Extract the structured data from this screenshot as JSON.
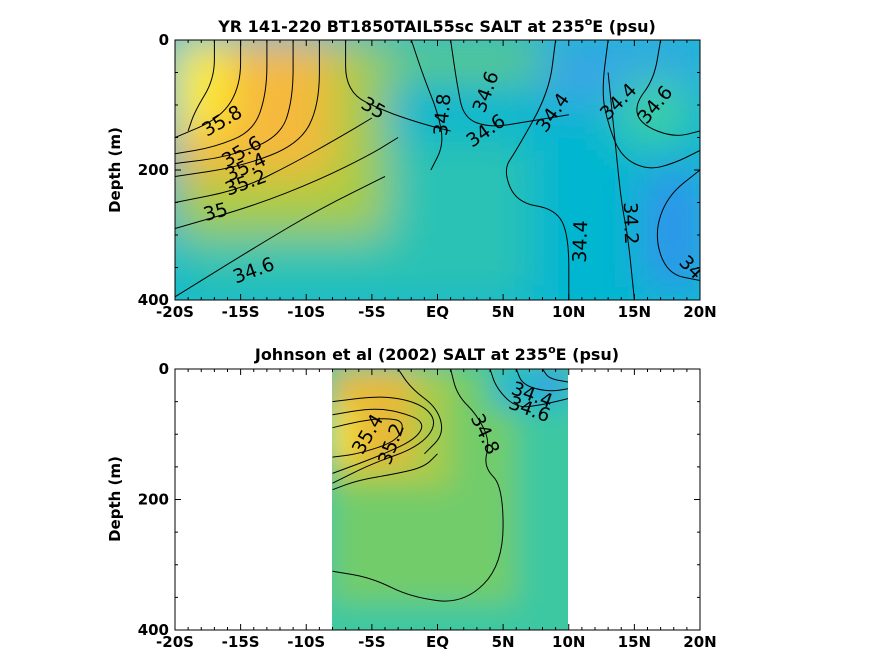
{
  "chart_data": [
    {
      "type": "contour",
      "title_text": "YR 141-220 BT1850TAIL55sc SALT at 235",
      "title_sup": "o",
      "title_tail": "E (psu)",
      "ylabel": "Depth (m)",
      "xlim": [
        -20,
        20
      ],
      "ylim": [
        0,
        400
      ],
      "y_reversed": true,
      "x_ticks": [
        -20,
        -15,
        -10,
        -5,
        0,
        5,
        10,
        15,
        20
      ],
      "x_tick_labels": [
        "-20S",
        "-15S",
        "-10S",
        "-5S",
        "EQ",
        "5N",
        "10N",
        "15N",
        "20N"
      ],
      "y_ticks": [
        0,
        200,
        400
      ],
      "y_tick_labels": [
        "0",
        "200",
        "400"
      ],
      "data_extent": {
        "lon": [
          -20,
          20
        ],
        "depth": [
          0,
          400
        ]
      },
      "color_fields": [
        {
          "color": "#00b6d0",
          "lon": [
            -20,
            20
          ],
          "depth": [
            0,
            400
          ]
        },
        {
          "color": "#2ac2b4",
          "lon": [
            -20,
            7
          ],
          "depth": [
            150,
            400
          ]
        },
        {
          "color": "#5ecb7a",
          "lon": [
            -20,
            10
          ],
          "depth": [
            0,
            60
          ]
        },
        {
          "color": "#38a6e6",
          "lon": [
            8,
            20
          ],
          "depth": [
            0,
            100
          ]
        },
        {
          "color": "#3090ee",
          "lon": [
            16,
            20
          ],
          "depth": [
            200,
            380
          ]
        },
        {
          "color": "#a8cc40",
          "lon": [
            -20,
            -4
          ],
          "depth": [
            0,
            300
          ]
        },
        {
          "color": "#f5b93c",
          "lon": [
            -20,
            -8
          ],
          "depth": [
            0,
            210
          ]
        },
        {
          "color": "#ffef2a",
          "lon": [
            -20,
            -16
          ],
          "depth": [
            0,
            140
          ]
        },
        {
          "color": "#3ed0a0",
          "lon": [
            14,
            19
          ],
          "depth": [
            60,
            160
          ]
        }
      ],
      "contours": [
        {
          "level": "35.8",
          "points": [
            [
              -17,
              0
            ],
            [
              -17,
              60
            ],
            [
              -18.5,
              110
            ],
            [
              -19,
              140
            ]
          ]
        },
        {
          "level": "",
          "points": [
            [
              -15,
              0
            ],
            [
              -15,
              70
            ],
            [
              -16.5,
              120
            ],
            [
              -20,
              150
            ]
          ]
        },
        {
          "level": "35.6",
          "points": [
            [
              -13,
              0
            ],
            [
              -13,
              80
            ],
            [
              -14,
              140
            ],
            [
              -17,
              165
            ],
            [
              -20,
              175
            ]
          ]
        },
        {
          "level": "35.4",
          "points": [
            [
              -11,
              0
            ],
            [
              -11,
              90
            ],
            [
              -12,
              150
            ],
            [
              -16,
              180
            ],
            [
              -20,
              190
            ]
          ]
        },
        {
          "level": "35.2",
          "points": [
            [
              -9,
              0
            ],
            [
              -9,
              100
            ],
            [
              -10.5,
              160
            ],
            [
              -15,
              195
            ],
            [
              -20,
              210
            ]
          ]
        },
        {
          "level": "35",
          "points": [
            [
              -5,
              120
            ],
            [
              -7.5,
              150
            ],
            [
              -11,
              190
            ],
            [
              -15,
              230
            ],
            [
              -20,
              250
            ]
          ]
        },
        {
          "level": "",
          "points": [
            [
              -3,
              150
            ],
            [
              -5,
              175
            ],
            [
              -9,
              215
            ],
            [
              -14,
              255
            ],
            [
              -20,
              290
            ]
          ]
        },
        {
          "level": "34.6",
          "points": [
            [
              -4,
              210
            ],
            [
              -9,
              260
            ],
            [
              -14,
              320
            ],
            [
              -20,
              395
            ]
          ]
        },
        {
          "level": "35",
          "points": [
            [
              -7,
              0
            ],
            [
              -7,
              80
            ],
            [
              -4,
              110
            ],
            [
              -1,
              130
            ],
            [
              1,
              140
            ]
          ]
        },
        {
          "level": "34.8",
          "points": [
            [
              -2,
              0
            ],
            [
              -1,
              60
            ],
            [
              0,
              110
            ],
            [
              0.5,
              160
            ],
            [
              -0.5,
              200
            ]
          ]
        },
        {
          "level": "34.6",
          "points": [
            [
              1,
              0
            ],
            [
              1.5,
              70
            ],
            [
              2,
              120
            ],
            [
              4,
              135
            ],
            [
              7,
              125
            ],
            [
              10,
              115
            ]
          ]
        },
        {
          "level": "34.4",
          "points": [
            [
              9,
              0
            ],
            [
              8.5,
              80
            ],
            [
              6,
              170
            ],
            [
              5,
              200
            ],
            [
              6,
              250
            ],
            [
              9,
              260
            ],
            [
              10,
              300
            ],
            [
              10,
              400
            ]
          ]
        },
        {
          "level": "34.2",
          "points": [
            [
              13,
              50
            ],
            [
              13.5,
              150
            ],
            [
              14,
              250
            ],
            [
              14.5,
              300
            ],
            [
              15,
              400
            ]
          ]
        },
        {
          "level": "34.4",
          "points": [
            [
              13,
              0
            ],
            [
              12.5,
              80
            ],
            [
              13,
              130
            ],
            [
              14,
              180
            ],
            [
              16,
              200
            ],
            [
              18,
              190
            ],
            [
              20,
              170
            ]
          ]
        },
        {
          "level": "34.6",
          "points": [
            [
              17,
              0
            ],
            [
              16.5,
              60
            ],
            [
              15,
              100
            ],
            [
              15.5,
              130
            ],
            [
              18,
              150
            ],
            [
              20,
              140
            ]
          ]
        },
        {
          "level": "34",
          "points": [
            [
              20,
              200
            ],
            [
              17.5,
              240
            ],
            [
              16.5,
              300
            ],
            [
              17.5,
              360
            ],
            [
              20,
              370
            ]
          ]
        }
      ],
      "labels": [
        {
          "text": "35.8",
          "lon": -16.4,
          "depth": 125,
          "angle": -30
        },
        {
          "text": "35.6",
          "lon": -14.9,
          "depth": 172,
          "angle": -30
        },
        {
          "text": "35.4",
          "lon": -14.6,
          "depth": 196,
          "angle": -25
        },
        {
          "text": "35.2",
          "lon": -14.6,
          "depth": 220,
          "angle": -20
        },
        {
          "text": "35",
          "lon": -16.9,
          "depth": 265,
          "angle": -15
        },
        {
          "text": "34.6",
          "lon": -14,
          "depth": 355,
          "angle": -20
        },
        {
          "text": "35",
          "lon": -4.9,
          "depth": 105,
          "angle": 30
        },
        {
          "text": "34.8",
          "lon": 0.4,
          "depth": 115,
          "angle": -85
        },
        {
          "text": "34.6",
          "lon": 3.7,
          "depth": 80,
          "angle": -70
        },
        {
          "text": "34.6",
          "lon": 3.7,
          "depth": 140,
          "angle": -35
        },
        {
          "text": "34.4",
          "lon": 8.8,
          "depth": 112,
          "angle": -55
        },
        {
          "text": "34.4",
          "lon": 13.8,
          "depth": 95,
          "angle": -45
        },
        {
          "text": "34.6",
          "lon": 16.6,
          "depth": 100,
          "angle": -50
        },
        {
          "text": "34.4",
          "lon": 10.9,
          "depth": 310,
          "angle": -88
        },
        {
          "text": "34.2",
          "lon": 14.7,
          "depth": 282,
          "angle": 88
        },
        {
          "text": "34",
          "lon": 19.3,
          "depth": 350,
          "angle": 45
        }
      ]
    },
    {
      "type": "contour",
      "title_text": "Johnson et al (2002) SALT at 235",
      "title_sup": "o",
      "title_tail": "E (psu)",
      "ylabel": "Depth (m)",
      "xlim": [
        -20,
        20
      ],
      "ylim": [
        0,
        400
      ],
      "y_reversed": true,
      "x_ticks": [
        -20,
        -15,
        -10,
        -5,
        0,
        5,
        10,
        15,
        20
      ],
      "x_tick_labels": [
        "-20S",
        "-15S",
        "-10S",
        "-5S",
        "EQ",
        "5N",
        "10N",
        "15N",
        "20N"
      ],
      "y_ticks": [
        0,
        200,
        400
      ],
      "y_tick_labels": [
        "0",
        "200",
        "400"
      ],
      "data_extent": {
        "lon": [
          -8,
          10
        ],
        "depth": [
          0,
          400
        ]
      },
      "color_fields": [
        {
          "color": "#3cc8a2",
          "lon": [
            -8,
            10
          ],
          "depth": [
            0,
            400
          ]
        },
        {
          "color": "#72cc6a",
          "lon": [
            -8,
            6
          ],
          "depth": [
            0,
            360
          ]
        },
        {
          "color": "#a9cb48",
          "lon": [
            -8,
            1
          ],
          "depth": [
            0,
            180
          ]
        },
        {
          "color": "#e6ba38",
          "lon": [
            -8,
            -2
          ],
          "depth": [
            0,
            150
          ]
        },
        {
          "color": "#ffe82a",
          "lon": [
            -8,
            -6.5
          ],
          "depth": [
            60,
            140
          ]
        },
        {
          "color": "#22b8d0",
          "lon": [
            4,
            10
          ],
          "depth": [
            0,
            60
          ]
        },
        {
          "color": "#3a96ee",
          "lon": [
            7.5,
            10
          ],
          "depth": [
            0,
            35
          ]
        }
      ],
      "contours": [
        {
          "level": "",
          "points": [
            [
              -8,
              90
            ],
            [
              -6,
              80
            ],
            [
              -4,
              75
            ],
            [
              -2.5,
              80
            ],
            [
              -3,
              110
            ],
            [
              -6,
              130
            ],
            [
              -8,
              135
            ]
          ]
        },
        {
          "level": "35.4",
          "points": [
            [
              -8,
              70
            ],
            [
              -5,
              60
            ],
            [
              -3,
              65
            ],
            [
              -1,
              80
            ],
            [
              -1.5,
              105
            ],
            [
              -4,
              130
            ],
            [
              -8,
              160
            ]
          ]
        },
        {
          "level": "35.2",
          "points": [
            [
              -8,
              50
            ],
            [
              -4,
              40
            ],
            [
              -1,
              55
            ],
            [
              0,
              85
            ],
            [
              -1.5,
              120
            ],
            [
              -5,
              145
            ],
            [
              -8,
              175
            ]
          ]
        },
        {
          "level": "",
          "points": [
            [
              -8,
              185
            ],
            [
              -6,
              170
            ],
            [
              -3,
              160
            ],
            [
              -1,
              150
            ],
            [
              0,
              130
            ]
          ]
        },
        {
          "level": "",
          "points": [
            [
              -3,
              0
            ],
            [
              -2,
              30
            ],
            [
              0,
              60
            ],
            [
              0.5,
              100
            ],
            [
              -1,
              130
            ]
          ]
        },
        {
          "level": "34.8",
          "points": [
            [
              1,
              0
            ],
            [
              1.5,
              40
            ],
            [
              3,
              70
            ],
            [
              4,
              110
            ],
            [
              3.5,
              150
            ],
            [
              5,
              180
            ],
            [
              5,
              300
            ],
            [
              2,
              360
            ],
            [
              -2,
              350
            ],
            [
              -5,
              320
            ],
            [
              -8,
              310
            ]
          ]
        },
        {
          "level": "34.6",
          "points": [
            [
              4,
              0
            ],
            [
              4.5,
              30
            ],
            [
              6,
              60
            ],
            [
              8,
              55
            ],
            [
              10,
              45
            ]
          ]
        },
        {
          "level": "34.4",
          "points": [
            [
              6,
              0
            ],
            [
              6.5,
              25
            ],
            [
              8.5,
              35
            ],
            [
              10,
              30
            ]
          ]
        },
        {
          "level": "",
          "points": [
            [
              8,
              0
            ],
            [
              8.5,
              15
            ],
            [
              10,
              20
            ]
          ]
        }
      ],
      "labels": [
        {
          "text": "35.4",
          "lon": -5.3,
          "depth": 100,
          "angle": -60
        },
        {
          "text": "35.2",
          "lon": -3.5,
          "depth": 115,
          "angle": -70
        },
        {
          "text": "34.8",
          "lon": 3.6,
          "depth": 100,
          "angle": 65
        },
        {
          "text": "34.4",
          "lon": 7.2,
          "depth": 40,
          "angle": 20
        },
        {
          "text": "34.6",
          "lon": 7,
          "depth": 62,
          "angle": 20
        }
      ]
    }
  ]
}
